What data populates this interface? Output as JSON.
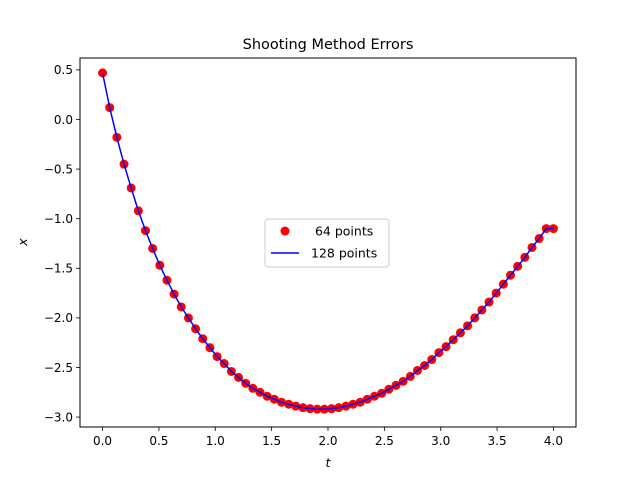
{
  "chart_data": {
    "type": "scatter",
    "title": "Shooting Method Errors",
    "xlabel": "t",
    "ylabel": "x",
    "xlim": [
      -0.2,
      4.2
    ],
    "ylim": [
      -3.1,
      0.62
    ],
    "xticks": [
      0.0,
      0.5,
      1.0,
      1.5,
      2.0,
      2.5,
      3.0,
      3.5,
      4.0
    ],
    "xtick_labels": [
      "0.0",
      "0.5",
      "1.0",
      "1.5",
      "2.0",
      "2.5",
      "3.0",
      "3.5",
      "4.0"
    ],
    "yticks": [
      0.5,
      0.0,
      -0.5,
      -1.0,
      -1.5,
      -2.0,
      -2.5,
      -3.0
    ],
    "ytick_labels": [
      "0.5",
      "0.0",
      "−0.5",
      "−1.0",
      "−1.5",
      "−2.0",
      "−2.5",
      "−3.0"
    ],
    "grid": false,
    "legend_position": "center-right",
    "series": [
      {
        "name": " 64 points",
        "style": "markers",
        "color": "#ff0000",
        "x": [
          0.0,
          0.0635,
          0.127,
          0.1905,
          0.254,
          0.3175,
          0.381,
          0.4444,
          0.5079,
          0.5714,
          0.6349,
          0.6984,
          0.7619,
          0.8254,
          0.8889,
          0.9524,
          1.0159,
          1.0794,
          1.1429,
          1.2063,
          1.2698,
          1.3333,
          1.3968,
          1.4603,
          1.5238,
          1.5873,
          1.6508,
          1.7143,
          1.7778,
          1.8413,
          1.9048,
          1.9683,
          2.0317,
          2.0952,
          2.1587,
          2.2222,
          2.2857,
          2.3492,
          2.4127,
          2.4762,
          2.5397,
          2.6032,
          2.6667,
          2.7302,
          2.7937,
          2.8571,
          2.9206,
          2.9841,
          3.0476,
          3.1111,
          3.1746,
          3.2381,
          3.3016,
          3.3651,
          3.4286,
          3.4921,
          3.5556,
          3.619,
          3.6825,
          3.746,
          3.8095,
          3.873,
          3.9365,
          4.0
        ],
        "y": [
          0.47,
          0.12,
          -0.18,
          -0.45,
          -0.69,
          -0.92,
          -1.12,
          -1.3,
          -1.47,
          -1.62,
          -1.76,
          -1.89,
          -2.0,
          -2.11,
          -2.21,
          -2.3,
          -2.39,
          -2.46,
          -2.54,
          -2.6,
          -2.66,
          -2.71,
          -2.75,
          -2.79,
          -2.82,
          -2.85,
          -2.87,
          -2.89,
          -2.905,
          -2.915,
          -2.92,
          -2.92,
          -2.915,
          -2.905,
          -2.89,
          -2.87,
          -2.85,
          -2.82,
          -2.79,
          -2.76,
          -2.72,
          -2.68,
          -2.64,
          -2.59,
          -2.53,
          -2.48,
          -2.42,
          -2.35,
          -2.29,
          -2.22,
          -2.15,
          -2.08,
          -2.0,
          -1.92,
          -1.84,
          -1.75,
          -1.66,
          -1.57,
          -1.48,
          -1.39,
          -1.29,
          -1.2,
          -1.1,
          -1.1
        ]
      },
      {
        "name": "128 points",
        "style": "line",
        "color": "#0000ff",
        "x": [
          0.0,
          0.0635,
          0.127,
          0.1905,
          0.254,
          0.3175,
          0.381,
          0.4444,
          0.5079,
          0.5714,
          0.6349,
          0.6984,
          0.7619,
          0.8254,
          0.8889,
          0.9524,
          1.0159,
          1.0794,
          1.1429,
          1.2063,
          1.2698,
          1.3333,
          1.3968,
          1.4603,
          1.5238,
          1.5873,
          1.6508,
          1.7143,
          1.7778,
          1.8413,
          1.9048,
          1.9683,
          2.0317,
          2.0952,
          2.1587,
          2.2222,
          2.2857,
          2.3492,
          2.4127,
          2.4762,
          2.5397,
          2.6032,
          2.6667,
          2.7302,
          2.7937,
          2.8571,
          2.9206,
          2.9841,
          3.0476,
          3.1111,
          3.1746,
          3.2381,
          3.3016,
          3.3651,
          3.4286,
          3.4921,
          3.5556,
          3.619,
          3.6825,
          3.746,
          3.8095,
          3.873,
          3.9365,
          4.0
        ],
        "y": [
          0.47,
          0.12,
          -0.18,
          -0.45,
          -0.69,
          -0.92,
          -1.12,
          -1.3,
          -1.47,
          -1.62,
          -1.76,
          -1.89,
          -2.0,
          -2.11,
          -2.21,
          -2.3,
          -2.39,
          -2.46,
          -2.54,
          -2.6,
          -2.66,
          -2.71,
          -2.75,
          -2.79,
          -2.82,
          -2.85,
          -2.87,
          -2.89,
          -2.905,
          -2.915,
          -2.92,
          -2.92,
          -2.915,
          -2.905,
          -2.89,
          -2.87,
          -2.85,
          -2.82,
          -2.79,
          -2.76,
          -2.72,
          -2.68,
          -2.64,
          -2.59,
          -2.53,
          -2.48,
          -2.42,
          -2.35,
          -2.29,
          -2.22,
          -2.15,
          -2.08,
          -2.0,
          -1.92,
          -1.84,
          -1.75,
          -1.66,
          -1.57,
          -1.48,
          -1.39,
          -1.29,
          -1.2,
          -1.1,
          -1.1
        ]
      }
    ]
  }
}
